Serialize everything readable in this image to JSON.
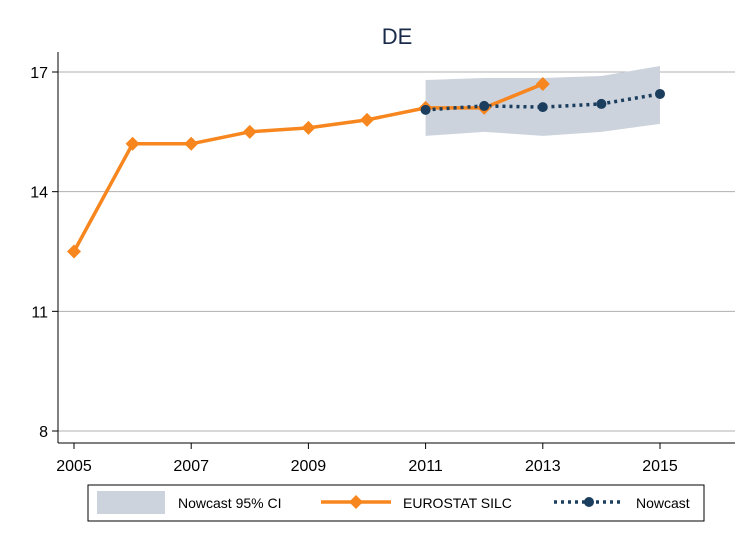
{
  "chart_data": {
    "type": "line",
    "title": "DE",
    "xlabel": "",
    "ylabel": "",
    "xlim": [
      2005,
      2016.2
    ],
    "ylim": [
      7.8,
      17.4
    ],
    "x_ticks": [
      2005,
      2007,
      2009,
      2011,
      2013,
      2015
    ],
    "y_ticks": [
      8,
      11,
      14,
      17
    ],
    "grid": true,
    "legend_position": "bottom",
    "colors": {
      "silc": "#f7861e",
      "nowcast": "#1b3d5e",
      "ci": "#ccd3dd",
      "grid": "#b0b0b0",
      "title": "#1a2b4a"
    },
    "ci_band": {
      "name": "Nowcast 95% CI",
      "x": [
        2011,
        2012,
        2013,
        2014,
        2015
      ],
      "lower": [
        15.4,
        15.5,
        15.4,
        15.5,
        15.7
      ],
      "upper": [
        16.8,
        16.85,
        16.85,
        16.9,
        17.15
      ]
    },
    "series": [
      {
        "name": "EUROSTAT SILC",
        "x": [
          2005,
          2006,
          2007,
          2008,
          2009,
          2010,
          2011,
          2012,
          2013
        ],
        "values": [
          12.5,
          15.2,
          15.2,
          15.5,
          15.6,
          15.8,
          16.1,
          16.1,
          16.7
        ]
      },
      {
        "name": "Nowcast",
        "x": [
          2011,
          2012,
          2013,
          2014,
          2015
        ],
        "values": [
          16.05,
          16.15,
          16.12,
          16.2,
          16.45
        ]
      }
    ]
  }
}
